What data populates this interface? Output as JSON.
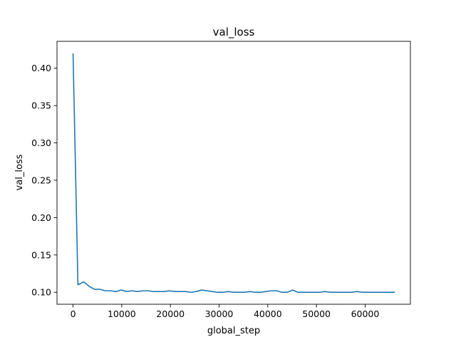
{
  "chart_data": {
    "type": "line",
    "title": "val_loss",
    "xlabel": "global_step",
    "ylabel": "val_loss",
    "xlim": [
      -3300,
      69300
    ],
    "ylim": [
      0.084,
      0.436
    ],
    "xticks": [
      0,
      10000,
      20000,
      30000,
      40000,
      50000,
      60000
    ],
    "xtick_labels": [
      "0",
      "10000",
      "20000",
      "30000",
      "40000",
      "50000",
      "60000"
    ],
    "yticks": [
      0.1,
      0.15,
      0.2,
      0.25,
      0.3,
      0.35,
      0.4
    ],
    "ytick_labels": [
      "0.10",
      "0.15",
      "0.20",
      "0.25",
      "0.30",
      "0.35",
      "0.40"
    ],
    "grid": false,
    "legend": "none",
    "series": [
      {
        "color": "#1f77b4",
        "x": [
          0,
          1000,
          2200,
          3300,
          4400,
          5500,
          6600,
          7700,
          8800,
          9900,
          11000,
          12100,
          13200,
          14300,
          15400,
          16500,
          17600,
          18700,
          19800,
          20900,
          22000,
          23100,
          24200,
          25300,
          26400,
          27500,
          28600,
          29700,
          30800,
          31900,
          33000,
          34100,
          35200,
          36300,
          37400,
          38500,
          39600,
          40700,
          41800,
          42900,
          44000,
          45100,
          46200,
          47300,
          48400,
          49500,
          50600,
          51700,
          52800,
          53900,
          55000,
          56100,
          57200,
          58300,
          59400,
          60500,
          61600,
          62700,
          63800,
          64900,
          66000
        ],
        "y": [
          0.419,
          0.11,
          0.114,
          0.108,
          0.104,
          0.104,
          0.102,
          0.102,
          0.101,
          0.103,
          0.101,
          0.102,
          0.101,
          0.102,
          0.102,
          0.101,
          0.101,
          0.101,
          0.102,
          0.101,
          0.101,
          0.101,
          0.1,
          0.101,
          0.103,
          0.102,
          0.101,
          0.1,
          0.1,
          0.101,
          0.1,
          0.1,
          0.1,
          0.101,
          0.1,
          0.1,
          0.101,
          0.102,
          0.102,
          0.1,
          0.1,
          0.103,
          0.1,
          0.1,
          0.1,
          0.1,
          0.1,
          0.101,
          0.1,
          0.1,
          0.1,
          0.1,
          0.1,
          0.101,
          0.1,
          0.1,
          0.1,
          0.1,
          0.1,
          0.1,
          0.1
        ]
      }
    ]
  }
}
